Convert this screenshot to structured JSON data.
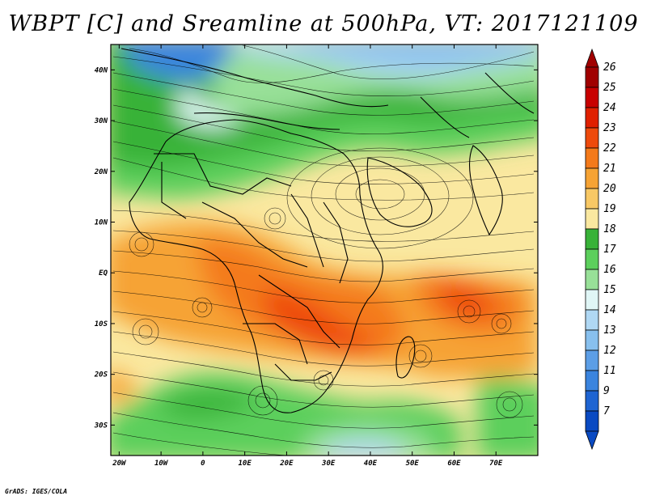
{
  "title": "WBPT [C] and Sreamline at 500hPa, VT: 2017121109",
  "footer": "GrADS: IGES/COLA",
  "map": {
    "variable": "Wet-bulb potential temperature",
    "units": "C",
    "level": "500hPa",
    "overlay": "streamlines",
    "lon_range": [
      -22,
      80
    ],
    "lat_range": [
      -36,
      45
    ],
    "lon_ticks": [
      {
        "value": -20,
        "label": "20W"
      },
      {
        "value": -10,
        "label": "10W"
      },
      {
        "value": 0,
        "label": "0"
      },
      {
        "value": 10,
        "label": "10E"
      },
      {
        "value": 20,
        "label": "20E"
      },
      {
        "value": 30,
        "label": "30E"
      },
      {
        "value": 40,
        "label": "40E"
      },
      {
        "value": 50,
        "label": "50E"
      },
      {
        "value": 60,
        "label": "60E"
      },
      {
        "value": 70,
        "label": "70E"
      }
    ],
    "lat_ticks": [
      {
        "value": 40,
        "label": "40N"
      },
      {
        "value": 30,
        "label": "30N"
      },
      {
        "value": 20,
        "label": "20N"
      },
      {
        "value": 10,
        "label": "10N"
      },
      {
        "value": 0,
        "label": "EQ"
      },
      {
        "value": -10,
        "label": "10S"
      },
      {
        "value": -20,
        "label": "20S"
      },
      {
        "value": -30,
        "label": "30S"
      }
    ]
  },
  "colorbar": {
    "levels": [
      {
        "label": "26",
        "color": "#a00000"
      },
      {
        "label": "25",
        "color": "#c80000"
      },
      {
        "label": "24",
        "color": "#e02000"
      },
      {
        "label": "23",
        "color": "#ee4a0c"
      },
      {
        "label": "22",
        "color": "#f47a1a"
      },
      {
        "label": "21",
        "color": "#f6a334"
      },
      {
        "label": "20",
        "color": "#f8c865"
      },
      {
        "label": "19",
        "color": "#fae8a0"
      },
      {
        "label": "18",
        "color": "#38b238"
      },
      {
        "label": "17",
        "color": "#5ccf5c"
      },
      {
        "label": "16",
        "color": "#98e098"
      },
      {
        "label": "15",
        "color": "#e0f6f6"
      },
      {
        "label": "14",
        "color": "#b0d8f4"
      },
      {
        "label": "13",
        "color": "#88c0ee"
      },
      {
        "label": "12",
        "color": "#5c9ee6"
      },
      {
        "label": "11",
        "color": "#3a84de"
      },
      {
        "label": "9",
        "color": "#1e64d2"
      },
      {
        "label": "7",
        "color": "#0a4ac2"
      }
    ],
    "top_arrow_color": "#a00000",
    "bottom_arrow_color": "#0a4ac2"
  }
}
